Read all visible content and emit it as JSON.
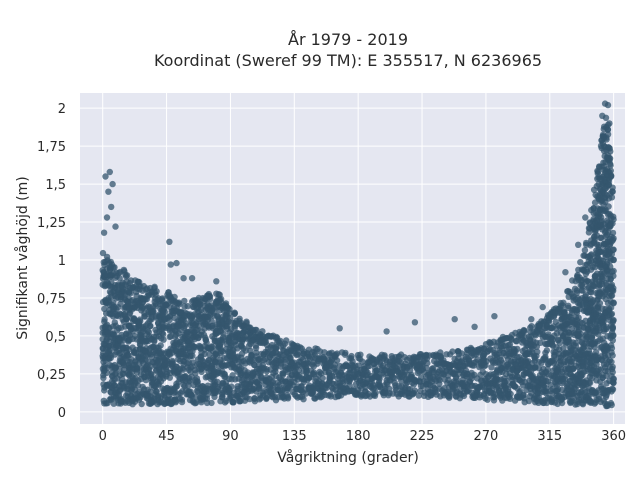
{
  "chart_data": {
    "type": "scatter",
    "title_line1": "År 1979 - 2019",
    "title_line2": "Koordinat (Sweref 99 TM): E 355517, N 6236965",
    "xlabel": "Vågriktning (grader)",
    "ylabel": "Signifikant våghöjd (m)",
    "xlim": [
      -16,
      368
    ],
    "ylim": [
      -0.08,
      2.1
    ],
    "x_ticks": [
      0,
      45,
      90,
      135,
      180,
      225,
      270,
      315,
      360
    ],
    "x_tick_labels": [
      "0",
      "45",
      "90",
      "135",
      "180",
      "225",
      "270",
      "315",
      "360"
    ],
    "y_ticks": [
      0,
      0.25,
      0.5,
      0.75,
      1,
      1.25,
      1.5,
      1.75,
      2
    ],
    "y_tick_labels": [
      "0",
      "0,25",
      "0,5",
      "0,75",
      "1",
      "1,25",
      "1,5",
      "1,75",
      "2"
    ],
    "grid": true,
    "point_color": "#34566e",
    "background_color": "#e5e7f1",
    "envelope_upper": [
      {
        "x": 0,
        "y": 1.05
      },
      {
        "x": 10,
        "y": 0.95
      },
      {
        "x": 20,
        "y": 0.92
      },
      {
        "x": 30,
        "y": 0.85
      },
      {
        "x": 45,
        "y": 0.8
      },
      {
        "x": 60,
        "y": 0.72
      },
      {
        "x": 75,
        "y": 0.78
      },
      {
        "x": 82,
        "y": 0.8
      },
      {
        "x": 90,
        "y": 0.68
      },
      {
        "x": 100,
        "y": 0.6
      },
      {
        "x": 115,
        "y": 0.52
      },
      {
        "x": 135,
        "y": 0.45
      },
      {
        "x": 160,
        "y": 0.4
      },
      {
        "x": 180,
        "y": 0.38
      },
      {
        "x": 200,
        "y": 0.38
      },
      {
        "x": 225,
        "y": 0.38
      },
      {
        "x": 250,
        "y": 0.4
      },
      {
        "x": 270,
        "y": 0.45
      },
      {
        "x": 290,
        "y": 0.52
      },
      {
        "x": 305,
        "y": 0.58
      },
      {
        "x": 315,
        "y": 0.65
      },
      {
        "x": 325,
        "y": 0.75
      },
      {
        "x": 335,
        "y": 0.95
      },
      {
        "x": 342,
        "y": 1.2
      },
      {
        "x": 348,
        "y": 1.55
      },
      {
        "x": 352,
        "y": 1.85
      },
      {
        "x": 355,
        "y": 2.0
      },
      {
        "x": 358,
        "y": 1.7
      },
      {
        "x": 360,
        "y": 1.3
      }
    ],
    "envelope_lower": [
      {
        "x": 0,
        "y": 0.05
      },
      {
        "x": 45,
        "y": 0.05
      },
      {
        "x": 90,
        "y": 0.06
      },
      {
        "x": 135,
        "y": 0.08
      },
      {
        "x": 180,
        "y": 0.1
      },
      {
        "x": 225,
        "y": 0.1
      },
      {
        "x": 270,
        "y": 0.08
      },
      {
        "x": 315,
        "y": 0.05
      },
      {
        "x": 360,
        "y": 0.03
      }
    ],
    "outliers": [
      {
        "x": 2,
        "y": 1.55
      },
      {
        "x": 5,
        "y": 1.58
      },
      {
        "x": 7,
        "y": 1.5
      },
      {
        "x": 4,
        "y": 1.45
      },
      {
        "x": 6,
        "y": 1.35
      },
      {
        "x": 3,
        "y": 1.28
      },
      {
        "x": 1,
        "y": 1.18
      },
      {
        "x": 9,
        "y": 1.22
      },
      {
        "x": 47,
        "y": 1.12
      },
      {
        "x": 48,
        "y": 0.97
      },
      {
        "x": 52,
        "y": 0.98
      },
      {
        "x": 57,
        "y": 0.88
      },
      {
        "x": 63,
        "y": 0.88
      },
      {
        "x": 80,
        "y": 0.86
      },
      {
        "x": 167,
        "y": 0.55
      },
      {
        "x": 200,
        "y": 0.53
      },
      {
        "x": 220,
        "y": 0.59
      },
      {
        "x": 248,
        "y": 0.61
      },
      {
        "x": 262,
        "y": 0.56
      },
      {
        "x": 276,
        "y": 0.63
      },
      {
        "x": 302,
        "y": 0.61
      },
      {
        "x": 310,
        "y": 0.69
      },
      {
        "x": 326,
        "y": 0.92
      },
      {
        "x": 335,
        "y": 1.1
      },
      {
        "x": 340,
        "y": 1.28
      },
      {
        "x": 354,
        "y": 2.03
      },
      {
        "x": 356,
        "y": 2.02
      },
      {
        "x": 352,
        "y": 1.95
      },
      {
        "x": 357,
        "y": 1.9
      }
    ]
  }
}
